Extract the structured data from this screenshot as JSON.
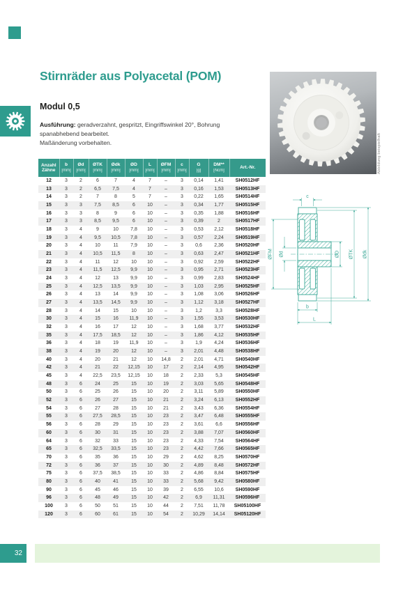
{
  "page": {
    "title": "Stirnräder aus Polyacetal (POM)",
    "subtitle": "Modul 0,5",
    "description_label": "Ausführung:",
    "description": " geradverzahnt, gespritzt, Eingriffswinkel 20°, Bohrung spanabhebend bearbeitet.",
    "description2": "Maßänderung vorbehalten.",
    "photo_caption": "Abbildung beispielhaft",
    "page_number": "32"
  },
  "colors": {
    "brand_teal": "#2E9C8E",
    "table_header_bg": "#359A8B",
    "drawing_teal": "#3BA897",
    "row_alt": "#EFEFEF",
    "footer_band": "#E4F4DC"
  },
  "drawing_labels": {
    "c": "c",
    "fm": "ØFM",
    "d": "Ød",
    "D": "ØD",
    "tk": "ØTK",
    "dk": "Ødk",
    "b": "b",
    "L": "L"
  },
  "table": {
    "headers": [
      {
        "name": "Anzahl",
        "name2": "Zähne",
        "unit": ""
      },
      {
        "name": "b",
        "unit": "[mm]"
      },
      {
        "name": "Ød",
        "unit": "[mm]"
      },
      {
        "name": "ØTK",
        "unit": "[mm]"
      },
      {
        "name": "Ødk",
        "unit": "[mm]"
      },
      {
        "name": "ØD",
        "unit": "[mm]"
      },
      {
        "name": "L",
        "unit": "[mm]"
      },
      {
        "name": "ØFM",
        "unit": "[mm]"
      },
      {
        "name": "c",
        "unit": "[mm]"
      },
      {
        "name": "G",
        "unit": "[g]"
      },
      {
        "name": "DM**",
        "unit": "[Ncm]"
      },
      {
        "name": "Art.-Nr.",
        "unit": ""
      }
    ],
    "rows": [
      [
        "12",
        "3",
        "2",
        "6",
        "7",
        "4",
        "7",
        "–",
        "3",
        "0,14",
        "1,41",
        "SH0512HF"
      ],
      [
        "13",
        "3",
        "2",
        "6,5",
        "7,5",
        "4",
        "7",
        "–",
        "3",
        "0,16",
        "1,53",
        "SH0513HF"
      ],
      [
        "14",
        "3",
        "2",
        "7",
        "8",
        "5",
        "7",
        "–",
        "3",
        "0,22",
        "1,65",
        "SH0514HF"
      ],
      [
        "15",
        "3",
        "3",
        "7,5",
        "8,5",
        "6",
        "10",
        "–",
        "3",
        "0,34",
        "1,77",
        "SH0515HF"
      ],
      [
        "16",
        "3",
        "3",
        "8",
        "9",
        "6",
        "10",
        "–",
        "3",
        "0,35",
        "1,88",
        "SH0516HF"
      ],
      [
        "17",
        "3",
        "3",
        "8,5",
        "9,5",
        "6",
        "10",
        "–",
        "3",
        "0,39",
        "2",
        "SH0517HF"
      ],
      [
        "18",
        "3",
        "4",
        "9",
        "10",
        "7,8",
        "10",
        "–",
        "3",
        "0,53",
        "2,12",
        "SH0518HF"
      ],
      [
        "19",
        "3",
        "4",
        "9,5",
        "10,5",
        "7,8",
        "10",
        "–",
        "3",
        "0,57",
        "2,24",
        "SH0519HF"
      ],
      [
        "20",
        "3",
        "4",
        "10",
        "11",
        "7,9",
        "10",
        "–",
        "3",
        "0,6",
        "2,36",
        "SH0520HF"
      ],
      [
        "21",
        "3",
        "4",
        "10,5",
        "11,5",
        "8",
        "10",
        "–",
        "3",
        "0,63",
        "2,47",
        "SH0521HF"
      ],
      [
        "22",
        "3",
        "4",
        "11",
        "12",
        "10",
        "10",
        "–",
        "3",
        "0,92",
        "2,59",
        "SH0522HF"
      ],
      [
        "23",
        "3",
        "4",
        "11,5",
        "12,5",
        "9,9",
        "10",
        "–",
        "3",
        "0,95",
        "2,71",
        "SH0523HF"
      ],
      [
        "24",
        "3",
        "4",
        "12",
        "13",
        "9,9",
        "10",
        "–",
        "3",
        "0,99",
        "2,83",
        "SH0524HF"
      ],
      [
        "25",
        "3",
        "4",
        "12,5",
        "13,5",
        "9,9",
        "10",
        "–",
        "3",
        "1,03",
        "2,95",
        "SH0525HF"
      ],
      [
        "26",
        "3",
        "4",
        "13",
        "14",
        "9,9",
        "10",
        "–",
        "3",
        "1,08",
        "3,06",
        "SH0526HF"
      ],
      [
        "27",
        "3",
        "4",
        "13,5",
        "14,5",
        "9,9",
        "10",
        "–",
        "3",
        "1,12",
        "3,18",
        "SH0527HF"
      ],
      [
        "28",
        "3",
        "4",
        "14",
        "15",
        "10",
        "10",
        "–",
        "3",
        "1,2",
        "3,3",
        "SH0528HF"
      ],
      [
        "30",
        "3",
        "4",
        "15",
        "16",
        "11,9",
        "10",
        "–",
        "3",
        "1,55",
        "3,53",
        "SH0530HF"
      ],
      [
        "32",
        "3",
        "4",
        "16",
        "17",
        "12",
        "10",
        "–",
        "3",
        "1,68",
        "3,77",
        "SH0532HF"
      ],
      [
        "35",
        "3",
        "4",
        "17,5",
        "18,5",
        "12",
        "10",
        "–",
        "3",
        "1,86",
        "4,12",
        "SH0535HF"
      ],
      [
        "36",
        "3",
        "4",
        "18",
        "19",
        "11,9",
        "10",
        "–",
        "3",
        "1,9",
        "4,24",
        "SH0536HF"
      ],
      [
        "38",
        "3",
        "4",
        "19",
        "20",
        "12",
        "10",
        "–",
        "3",
        "2,01",
        "4,48",
        "SH0538HF"
      ],
      [
        "40",
        "3",
        "4",
        "20",
        "21",
        "12",
        "10",
        "14,8",
        "2",
        "2,01",
        "4,71",
        "SH0540HF"
      ],
      [
        "42",
        "3",
        "4",
        "21",
        "22",
        "12,15",
        "10",
        "17",
        "2",
        "2,14",
        "4,95",
        "SH0542HF"
      ],
      [
        "45",
        "3",
        "4",
        "22,5",
        "23,5",
        "12,15",
        "10",
        "18",
        "2",
        "2,33",
        "5,3",
        "SH0545HF"
      ],
      [
        "48",
        "3",
        "6",
        "24",
        "25",
        "15",
        "10",
        "19",
        "2",
        "3,03",
        "5,65",
        "SH0548HF"
      ],
      [
        "50",
        "3",
        "6",
        "25",
        "26",
        "15",
        "10",
        "20",
        "2",
        "3,11",
        "5,89",
        "SH0550HF"
      ],
      [
        "52",
        "3",
        "6",
        "26",
        "27",
        "15",
        "10",
        "21",
        "2",
        "3,24",
        "6,13",
        "SH0552HF"
      ],
      [
        "54",
        "3",
        "6",
        "27",
        "28",
        "15",
        "10",
        "21",
        "2",
        "3,43",
        "6,36",
        "SH0554HF"
      ],
      [
        "55",
        "3",
        "6",
        "27,5",
        "28,5",
        "15",
        "10",
        "23",
        "2",
        "3,47",
        "6,48",
        "SH0555HF"
      ],
      [
        "56",
        "3",
        "6",
        "28",
        "29",
        "15",
        "10",
        "23",
        "2",
        "3,61",
        "6,6",
        "SH0556HF"
      ],
      [
        "60",
        "3",
        "6",
        "30",
        "31",
        "15",
        "10",
        "23",
        "2",
        "3,88",
        "7,07",
        "SH0560HF"
      ],
      [
        "64",
        "3",
        "6",
        "32",
        "33",
        "15",
        "10",
        "23",
        "2",
        "4,33",
        "7,54",
        "SH0564HF"
      ],
      [
        "65",
        "3",
        "6",
        "32,5",
        "33,5",
        "15",
        "10",
        "23",
        "2",
        "4,42",
        "7,66",
        "SH0565HF"
      ],
      [
        "70",
        "3",
        "6",
        "35",
        "36",
        "15",
        "10",
        "29",
        "2",
        "4,62",
        "8,25",
        "SH0570HF"
      ],
      [
        "72",
        "3",
        "6",
        "36",
        "37",
        "15",
        "10",
        "30",
        "2",
        "4,89",
        "8,48",
        "SH0572HF"
      ],
      [
        "75",
        "3",
        "6",
        "37,5",
        "38,5",
        "15",
        "10",
        "33",
        "2",
        "4,86",
        "8,84",
        "SH0575HF"
      ],
      [
        "80",
        "3",
        "6",
        "40",
        "41",
        "15",
        "10",
        "33",
        "2",
        "5,68",
        "9,42",
        "SH0580HF"
      ],
      [
        "90",
        "3",
        "6",
        "45",
        "46",
        "15",
        "10",
        "39",
        "2",
        "6,55",
        "10,6",
        "SH0590HF"
      ],
      [
        "96",
        "3",
        "6",
        "48",
        "49",
        "15",
        "10",
        "42",
        "2",
        "6,9",
        "11,31",
        "SH0596HF"
      ],
      [
        "100",
        "3",
        "6",
        "50",
        "51",
        "15",
        "10",
        "44",
        "2",
        "7,51",
        "11,78",
        "SH05100HF"
      ],
      [
        "120",
        "3",
        "6",
        "60",
        "61",
        "15",
        "10",
        "54",
        "2",
        "10,29",
        "14,14",
        "SH05120HF"
      ]
    ]
  }
}
